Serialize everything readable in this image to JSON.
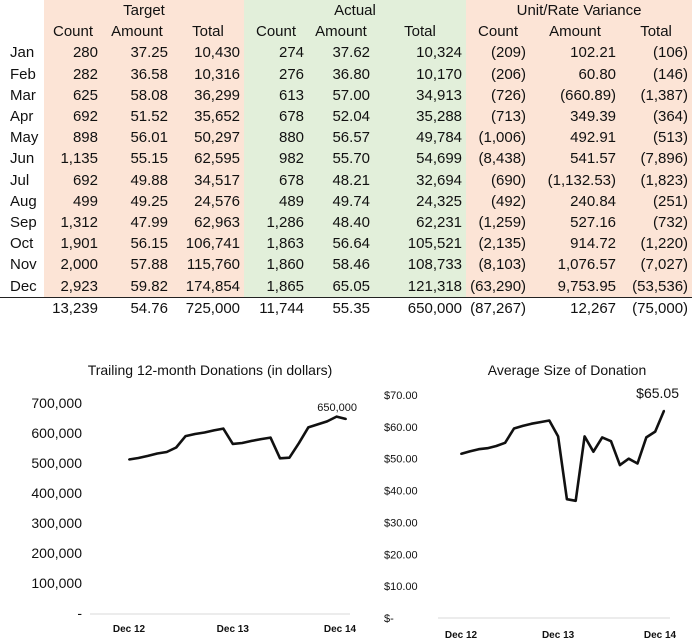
{
  "table": {
    "groups": [
      "Target",
      "Actual",
      "Unit/Rate Variance"
    ],
    "subheaders": [
      "Count",
      "Amount",
      "Total",
      "Count",
      "Amount",
      "Total",
      "Count",
      "Amount",
      "Total"
    ],
    "rows": [
      {
        "month": "Jan",
        "cells": [
          "280",
          "37.25",
          "10,430",
          "274",
          "37.62",
          "10,324",
          "(209)",
          "102.21",
          "(106)"
        ]
      },
      {
        "month": "Feb",
        "cells": [
          "282",
          "36.58",
          "10,316",
          "276",
          "36.80",
          "10,170",
          "(206)",
          "60.80",
          "(146)"
        ]
      },
      {
        "month": "Mar",
        "cells": [
          "625",
          "58.08",
          "36,299",
          "613",
          "57.00",
          "34,913",
          "(726)",
          "(660.89)",
          "(1,387)"
        ]
      },
      {
        "month": "Apr",
        "cells": [
          "692",
          "51.52",
          "35,652",
          "678",
          "52.04",
          "35,288",
          "(713)",
          "349.39",
          "(364)"
        ]
      },
      {
        "month": "May",
        "cells": [
          "898",
          "56.01",
          "50,297",
          "880",
          "56.57",
          "49,784",
          "(1,006)",
          "492.91",
          "(513)"
        ]
      },
      {
        "month": "Jun",
        "cells": [
          "1,135",
          "55.15",
          "62,595",
          "982",
          "55.70",
          "54,699",
          "(8,438)",
          "541.57",
          "(7,896)"
        ]
      },
      {
        "month": "Jul",
        "cells": [
          "692",
          "49.88",
          "34,517",
          "678",
          "48.21",
          "32,694",
          "(690)",
          "(1,132.53)",
          "(1,823)"
        ]
      },
      {
        "month": "Aug",
        "cells": [
          "499",
          "49.25",
          "24,576",
          "489",
          "49.74",
          "24,325",
          "(492)",
          "240.84",
          "(251)"
        ]
      },
      {
        "month": "Sep",
        "cells": [
          "1,312",
          "47.99",
          "62,963",
          "1,286",
          "48.40",
          "62,231",
          "(1,259)",
          "527.16",
          "(732)"
        ]
      },
      {
        "month": "Oct",
        "cells": [
          "1,901",
          "56.15",
          "106,741",
          "1,863",
          "56.64",
          "105,521",
          "(2,135)",
          "914.72",
          "(1,220)"
        ]
      },
      {
        "month": "Nov",
        "cells": [
          "2,000",
          "57.88",
          "115,760",
          "1,860",
          "58.46",
          "108,733",
          "(8,103)",
          "1,076.57",
          "(7,027)"
        ]
      },
      {
        "month": "Dec",
        "cells": [
          "2,923",
          "59.82",
          "174,854",
          "1,865",
          "65.05",
          "121,318",
          "(63,290)",
          "9,753.95",
          "(53,536)"
        ]
      }
    ],
    "totals": [
      "13,239",
      "54.76",
      "725,000",
      "11,744",
      "55.35",
      "650,000",
      "(87,267)",
      "12,267",
      "(75,000)"
    ]
  },
  "chart_data": [
    {
      "type": "line",
      "title": "Trailing 12-month Donations (in dollars)",
      "x_ticks": [
        "Dec 12",
        "Dec 13",
        "Dec 14"
      ],
      "y_ticks": [
        "-",
        "100,000",
        "200,000",
        "300,000",
        "400,000",
        "500,000",
        "600,000",
        "700,000"
      ],
      "ylim": [
        0,
        700000
      ],
      "values": [
        515000,
        520000,
        527000,
        535000,
        540000,
        555000,
        593000,
        600000,
        605000,
        612000,
        618000,
        567000,
        570000,
        577000,
        583000,
        588000,
        519000,
        521000,
        569000,
        622000,
        632000,
        642000,
        658000,
        650000
      ],
      "point_label": "650,000",
      "color": "#111111"
    },
    {
      "type": "line",
      "title": "Average Size of Donation",
      "x_ticks": [
        "Dec 12",
        "Dec 13",
        "Dec 14"
      ],
      "y_ticks": [
        "$-",
        "$10.00",
        "$20.00",
        "$30.00",
        "$40.00",
        "$50.00",
        "$60.00",
        "$70.00"
      ],
      "ylim": [
        0,
        70
      ],
      "values": [
        51.5,
        52.3,
        53.0,
        53.3,
        54.0,
        55.0,
        59.5,
        60.3,
        61.0,
        61.5,
        62.0,
        57.0,
        37.3,
        36.8,
        57.0,
        52.2,
        56.7,
        55.5,
        48.0,
        50.0,
        48.5,
        56.7,
        58.5,
        65.05
      ],
      "point_label": "$65.05",
      "color": "#111111"
    }
  ]
}
